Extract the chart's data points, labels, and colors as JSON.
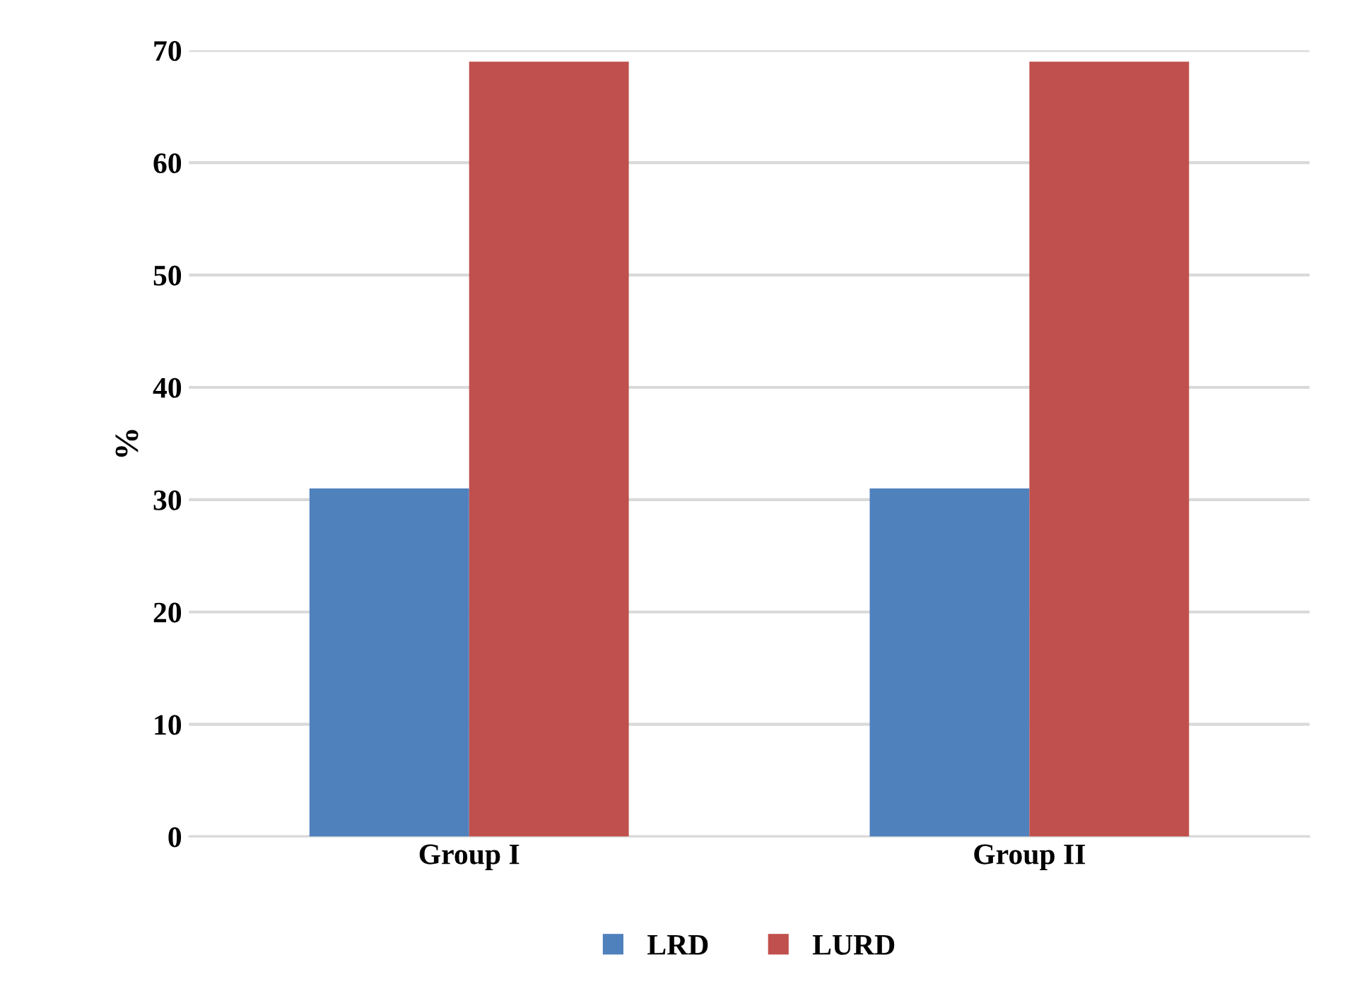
{
  "chart_data": {
    "type": "bar",
    "ylabel": "%",
    "categories": [
      "Group I",
      "Group II"
    ],
    "series": [
      {
        "name": "LRD",
        "color": "#4f81bd",
        "values": [
          31,
          31
        ]
      },
      {
        "name": "LURD",
        "color": "#c0504d",
        "values": [
          69,
          69
        ]
      }
    ],
    "ylim": [
      0,
      70
    ],
    "yticks": [
      0,
      10,
      20,
      30,
      40,
      50,
      60,
      70
    ],
    "grid": "y",
    "legend": "bottom"
  }
}
